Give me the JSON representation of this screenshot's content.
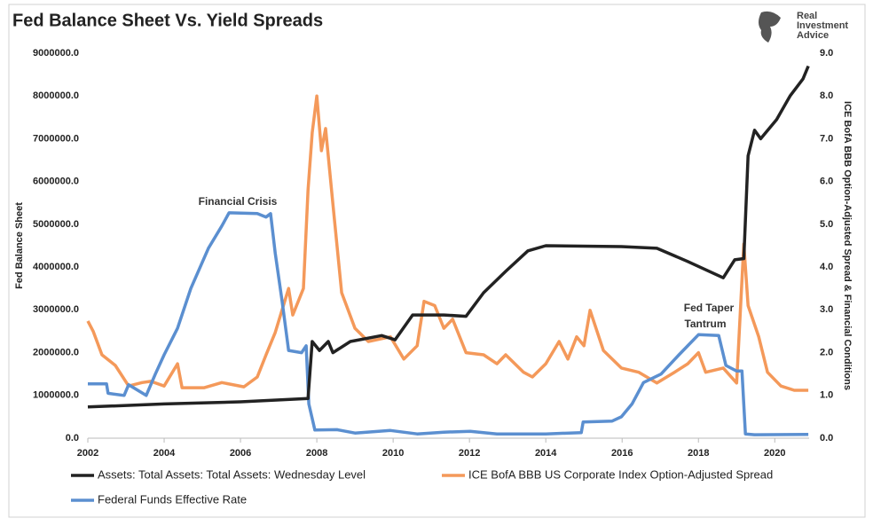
{
  "chart_data": {
    "type": "line",
    "title": "Fed Balance Sheet Vs. Yield Spreads",
    "logo": [
      "Real",
      "Investment",
      "Advice"
    ],
    "y_label": "Fed Balance Sheet",
    "y2_label": "ICE BofA BBB Option-Adjusted Spread & Financial Conditions",
    "annotations": [
      "Financial Crisis",
      "Fed Taper",
      "Tantrum"
    ],
    "legend": "bottom",
    "grid": false,
    "xlim": [
      2002,
      2020.9
    ],
    "xticks": [
      2002,
      2004,
      2006,
      2008,
      2010,
      2012,
      2014,
      2016,
      2018,
      2020
    ],
    "ylim": [
      0,
      9000000
    ],
    "yticks": [
      {
        "value": 0,
        "label": "0.0"
      },
      {
        "value": 1000000,
        "label": "1000000.0"
      },
      {
        "value": 2000000,
        "label": "2000000.0"
      },
      {
        "value": 3000000,
        "label": "3000000.0"
      },
      {
        "value": 4000000,
        "label": "4000000.0"
      },
      {
        "value": 5000000,
        "label": "5000000.0"
      },
      {
        "value": 6000000,
        "label": "6000000.0"
      },
      {
        "value": 7000000,
        "label": "7000000.0"
      },
      {
        "value": 8000000,
        "label": "8000000.0"
      },
      {
        "value": 9000000,
        "label": "9000000.0"
      }
    ],
    "y2lim": [
      0,
      9
    ],
    "y2ticks": [
      {
        "value": 0,
        "label": "0.0"
      },
      {
        "value": 1,
        "label": "1.0"
      },
      {
        "value": 2,
        "label": "2.0"
      },
      {
        "value": 3,
        "label": "3.0"
      },
      {
        "value": 4,
        "label": "4.0"
      },
      {
        "value": 5,
        "label": "5.0"
      },
      {
        "value": 6,
        "label": "6.0"
      },
      {
        "value": 7,
        "label": "7.0"
      },
      {
        "value": 8,
        "label": "8.0"
      },
      {
        "value": 9,
        "label": "9.0"
      }
    ],
    "series": [
      {
        "name": "Assets: Total Assets: Total Assets: Wednesday Level",
        "color": "#222222",
        "axis": "y",
        "x": [
          2002.0,
          2004.0,
          2006.0,
          2007.77,
          2007.88,
          2008.07,
          2008.3,
          2008.42,
          2008.88,
          2009.7,
          2010.05,
          2010.51,
          2011.33,
          2011.91,
          2012.37,
          2012.95,
          2013.53,
          2014.0,
          2015.98,
          2016.91,
          2017.72,
          2018.65,
          2018.95,
          2019.19,
          2019.3,
          2019.47,
          2019.63,
          2020.05,
          2020.4,
          2020.74,
          2020.88
        ],
        "values": [
          730000,
          800000,
          850000,
          930000,
          2260000,
          2050000,
          2260000,
          2000000,
          2260000,
          2400000,
          2300000,
          2880000,
          2880000,
          2850000,
          3400000,
          3900000,
          4380000,
          4500000,
          4480000,
          4440000,
          4130000,
          3750000,
          4170000,
          4200000,
          6600000,
          7200000,
          7000000,
          7450000,
          8000000,
          8400000,
          8700000
        ]
      },
      {
        "name": "ICE BofA BBB US Corporate Index Option-Adjusted Spread",
        "color": "#f4995a",
        "axis": "y2",
        "x": [
          2002.0,
          2002.14,
          2002.37,
          2002.72,
          2003.07,
          2003.42,
          2003.65,
          2004.0,
          2004.35,
          2004.47,
          2005.05,
          2005.51,
          2006.09,
          2006.44,
          2006.67,
          2006.91,
          2007.26,
          2007.37,
          2007.65,
          2007.77,
          2007.88,
          2008.0,
          2008.12,
          2008.23,
          2008.42,
          2008.65,
          2009.0,
          2009.35,
          2009.93,
          2010.28,
          2010.63,
          2010.81,
          2011.09,
          2011.33,
          2011.56,
          2011.91,
          2012.37,
          2012.72,
          2012.95,
          2013.42,
          2013.65,
          2014.0,
          2014.35,
          2014.58,
          2014.81,
          2015.0,
          2015.16,
          2015.51,
          2015.98,
          2016.44,
          2016.91,
          2017.37,
          2017.72,
          2018.0,
          2018.19,
          2018.65,
          2019.0,
          2019.19,
          2019.3,
          2019.58,
          2019.81,
          2020.16,
          2020.51,
          2020.88
        ],
        "values": [
          2.74,
          2.5,
          1.95,
          1.7,
          1.22,
          1.3,
          1.33,
          1.22,
          1.74,
          1.18,
          1.18,
          1.3,
          1.2,
          1.43,
          1.95,
          2.47,
          3.5,
          2.88,
          3.5,
          5.8,
          7.14,
          8.0,
          6.72,
          7.24,
          5.48,
          3.4,
          2.57,
          2.26,
          2.37,
          1.85,
          2.16,
          3.2,
          3.1,
          2.57,
          2.78,
          2.0,
          1.95,
          1.74,
          1.95,
          1.54,
          1.43,
          1.74,
          2.26,
          1.85,
          2.37,
          2.16,
          2.99,
          2.05,
          1.64,
          1.54,
          1.29,
          1.54,
          1.74,
          2.0,
          1.54,
          1.64,
          1.29,
          4.54,
          3.1,
          2.37,
          1.54,
          1.22,
          1.12,
          1.12
        ]
      },
      {
        "name": "Federal Funds Effective Rate",
        "color": "#5b8fd0",
        "axis": "y2",
        "x": [
          2002.0,
          2002.49,
          2002.53,
          2002.95,
          2003.07,
          2003.53,
          2003.77,
          2004.0,
          2004.35,
          2004.7,
          2005.16,
          2005.51,
          2005.7,
          2006.44,
          2006.67,
          2006.79,
          2006.91,
          2007.09,
          2007.26,
          2007.6,
          2007.72,
          2007.79,
          2007.95,
          2008.53,
          2009.0,
          2009.93,
          2010.63,
          2011.33,
          2012.02,
          2012.72,
          2014.0,
          2014.93,
          2014.98,
          2015.74,
          2015.98,
          2016.26,
          2016.56,
          2017.02,
          2017.49,
          2018.0,
          2018.53,
          2018.72,
          2019.0,
          2019.14,
          2019.23,
          2019.47,
          2020.88
        ],
        "values": [
          1.27,
          1.27,
          1.05,
          1.0,
          1.25,
          1.0,
          1.5,
          1.95,
          2.57,
          3.5,
          4.44,
          4.96,
          5.27,
          5.25,
          5.17,
          5.25,
          4.33,
          3.2,
          2.05,
          2.0,
          2.16,
          0.8,
          0.19,
          0.2,
          0.12,
          0.18,
          0.1,
          0.14,
          0.16,
          0.1,
          0.1,
          0.13,
          0.38,
          0.4,
          0.5,
          0.8,
          1.3,
          1.5,
          1.95,
          2.42,
          2.4,
          1.7,
          1.57,
          1.57,
          0.1,
          0.08,
          0.09
        ]
      }
    ]
  }
}
